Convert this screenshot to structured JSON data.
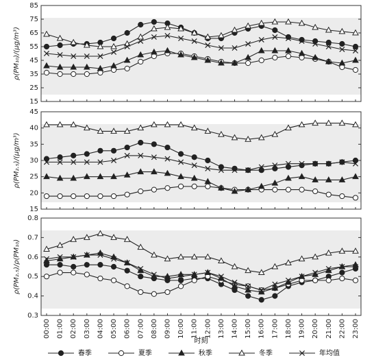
{
  "chart_data": [
    {
      "type": "line",
      "ylabel": "ρ(PM₁₀)/(μg/m³)",
      "ylim": [
        15,
        85
      ],
      "yticks": [
        15,
        25,
        35,
        45,
        55,
        65,
        75,
        85
      ],
      "series": [
        {
          "marker": "filled-circle",
          "color": "#222222",
          "values": [
            55,
            56,
            57,
            57,
            58,
            61,
            65,
            71,
            73,
            72,
            69,
            65,
            61,
            61,
            65,
            68,
            70,
            67,
            62,
            60,
            59,
            58,
            57,
            55
          ]
        },
        {
          "marker": "open-circle",
          "color": "#222222",
          "values": [
            36,
            35,
            35,
            35,
            36,
            38,
            39,
            44,
            48,
            50,
            50,
            48,
            46,
            44,
            43,
            43,
            45,
            47,
            48,
            47,
            46,
            44,
            40,
            38
          ]
        },
        {
          "marker": "filled-triangle",
          "color": "#222222",
          "values": [
            41,
            40,
            40,
            40,
            39,
            41,
            45,
            49,
            51,
            52,
            49,
            47,
            45,
            43,
            43,
            47,
            52,
            52,
            52,
            50,
            47,
            44,
            43,
            45
          ]
        },
        {
          "marker": "open-triangle",
          "color": "#222222",
          "values": [
            64,
            61,
            58,
            56,
            55,
            55,
            57,
            62,
            68,
            69,
            68,
            65,
            62,
            63,
            67,
            70,
            72,
            73,
            73,
            72,
            69,
            67,
            66,
            65
          ]
        },
        {
          "marker": "cross",
          "color": "#222222",
          "values": [
            50,
            49,
            48,
            48,
            48,
            51,
            55,
            59,
            62,
            63,
            61,
            59,
            56,
            54,
            54,
            57,
            60,
            62,
            61,
            59,
            57,
            55,
            53,
            52
          ]
        }
      ]
    },
    {
      "type": "line",
      "ylabel": "ρ(PM₂.₅)/(μg/m³)",
      "ylim": [
        15,
        45
      ],
      "yticks": [
        15,
        20,
        25,
        30,
        35,
        40,
        45
      ],
      "series": [
        {
          "marker": "filled-circle",
          "color": "#222222",
          "values": [
            30.5,
            31,
            31.5,
            32,
            33,
            33,
            34,
            35.5,
            35,
            34,
            32,
            31,
            30,
            28,
            27.5,
            27,
            27,
            27.5,
            28,
            28.5,
            29,
            29,
            29.5,
            30
          ]
        },
        {
          "marker": "open-circle",
          "color": "#222222",
          "values": [
            19,
            19,
            19,
            19,
            19,
            19,
            19.5,
            20.5,
            21,
            21.5,
            22,
            22,
            22,
            21.5,
            21,
            21,
            21,
            21,
            21,
            21,
            20.5,
            19.5,
            19,
            18.5
          ]
        },
        {
          "marker": "filled-triangle",
          "color": "#222222",
          "values": [
            25,
            24.5,
            24.5,
            25,
            25,
            25,
            25.5,
            26.5,
            26.5,
            26,
            25,
            24.5,
            23.5,
            21.5,
            20.5,
            21,
            22,
            23,
            24.5,
            25,
            24,
            24,
            24,
            25
          ]
        },
        {
          "marker": "open-triangle",
          "color": "#222222",
          "values": [
            41,
            41,
            41,
            40,
            39,
            39,
            39,
            40,
            41,
            41,
            41,
            40,
            39,
            38,
            37,
            36.5,
            37,
            38,
            40,
            41,
            41.5,
            41.5,
            41.5,
            41
          ]
        },
        {
          "marker": "cross",
          "color": "#222222",
          "values": [
            29.5,
            29.5,
            29.5,
            29.5,
            29.5,
            30,
            31.5,
            31.5,
            31,
            30.5,
            29.5,
            28.5,
            27.5,
            27,
            27,
            27,
            28,
            28.5,
            29,
            29,
            29,
            29,
            29.5,
            29
          ]
        }
      ]
    },
    {
      "type": "line",
      "ylabel": "ρ(PM₂.₅)/ρ(PM₁₀)",
      "xlabel": "时刻",
      "ylim": [
        0.3,
        0.8
      ],
      "yticks": [
        0.3,
        0.4,
        0.5,
        0.6,
        0.7,
        0.8
      ],
      "categories": [
        "00:00",
        "01:00",
        "02:00",
        "03:00",
        "04:00",
        "05:00",
        "06:00",
        "07:00",
        "08:00",
        "09:00",
        "10:00",
        "11:00",
        "12:00",
        "13:00",
        "14:00",
        "15:00",
        "16:00",
        "17:00",
        "18:00",
        "19:00",
        "20:00",
        "21:00",
        "22:00",
        "23:00"
      ],
      "series": [
        {
          "name": "春季",
          "marker": "filled-circle",
          "color": "#222222",
          "values": [
            0.56,
            0.56,
            0.55,
            0.56,
            0.56,
            0.55,
            0.53,
            0.5,
            0.49,
            0.48,
            0.48,
            0.49,
            0.49,
            0.46,
            0.43,
            0.4,
            0.38,
            0.4,
            0.45,
            0.47,
            0.48,
            0.5,
            0.52,
            0.54
          ]
        },
        {
          "name": "夏季",
          "marker": "open-circle",
          "color": "#222222",
          "values": [
            0.5,
            0.52,
            0.52,
            0.51,
            0.49,
            0.48,
            0.45,
            0.42,
            0.41,
            0.42,
            0.45,
            0.48,
            0.5,
            0.48,
            0.46,
            0.45,
            0.43,
            0.44,
            0.46,
            0.48,
            0.48,
            0.48,
            0.49,
            0.48
          ]
        },
        {
          "name": "秋季",
          "marker": "filled-triangle",
          "color": "#222222",
          "values": [
            0.58,
            0.59,
            0.6,
            0.61,
            0.62,
            0.6,
            0.57,
            0.53,
            0.5,
            0.5,
            0.51,
            0.51,
            0.52,
            0.49,
            0.45,
            0.43,
            0.42,
            0.44,
            0.47,
            0.5,
            0.51,
            0.53,
            0.55,
            0.56
          ]
        },
        {
          "name": "冬季",
          "marker": "open-triangle",
          "color": "#222222",
          "values": [
            0.64,
            0.66,
            0.69,
            0.7,
            0.72,
            0.7,
            0.69,
            0.65,
            0.61,
            0.59,
            0.6,
            0.6,
            0.6,
            0.58,
            0.55,
            0.53,
            0.52,
            0.55,
            0.57,
            0.59,
            0.6,
            0.62,
            0.63,
            0.63
          ]
        },
        {
          "name": "年均值",
          "marker": "cross",
          "color": "#222222",
          "values": [
            0.59,
            0.6,
            0.6,
            0.61,
            0.61,
            0.59,
            0.57,
            0.54,
            0.51,
            0.49,
            0.5,
            0.51,
            0.52,
            0.5,
            0.47,
            0.45,
            0.43,
            0.46,
            0.48,
            0.5,
            0.52,
            0.54,
            0.55,
            0.55
          ]
        }
      ]
    }
  ]
}
